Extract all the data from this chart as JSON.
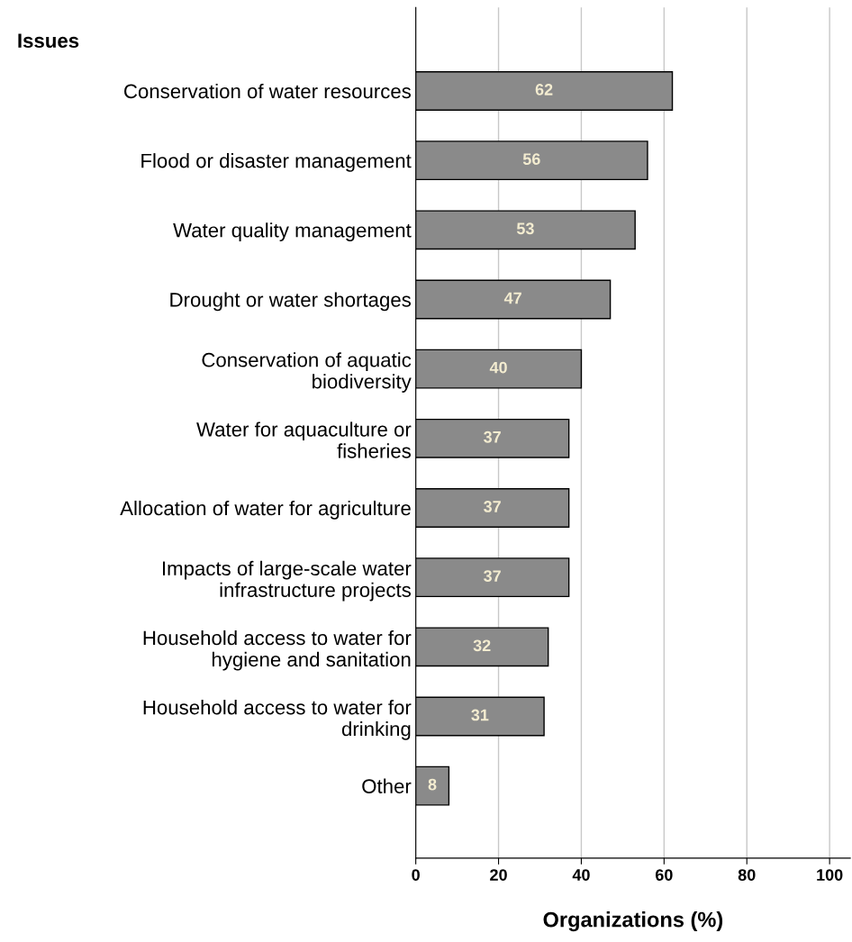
{
  "chart_data": {
    "type": "bar",
    "orientation": "horizontal",
    "ylabel": "Issues",
    "xlabel": "Organizations (%)",
    "categories": [
      "Conservation of water resources",
      "Flood or disaster management",
      "Water quality management",
      "Drought or water shortages",
      "Conservation of aquatic\nbiodiversity",
      "Water for aquaculture or\nfisheries",
      "Allocation of water for agriculture",
      "Impacts of large-scale water\ninfrastructure projects",
      "Household access to water for\nhygiene and sanitation",
      "Household access to water for\ndrinking",
      "Other"
    ],
    "values": [
      62,
      56,
      53,
      47,
      40,
      37,
      37,
      37,
      32,
      31,
      8
    ],
    "color": "#8a8a8a",
    "data_labels": true,
    "xlim": [
      0,
      105
    ],
    "xticks": [
      0,
      20,
      40,
      60,
      80,
      100
    ],
    "grid": "x"
  }
}
